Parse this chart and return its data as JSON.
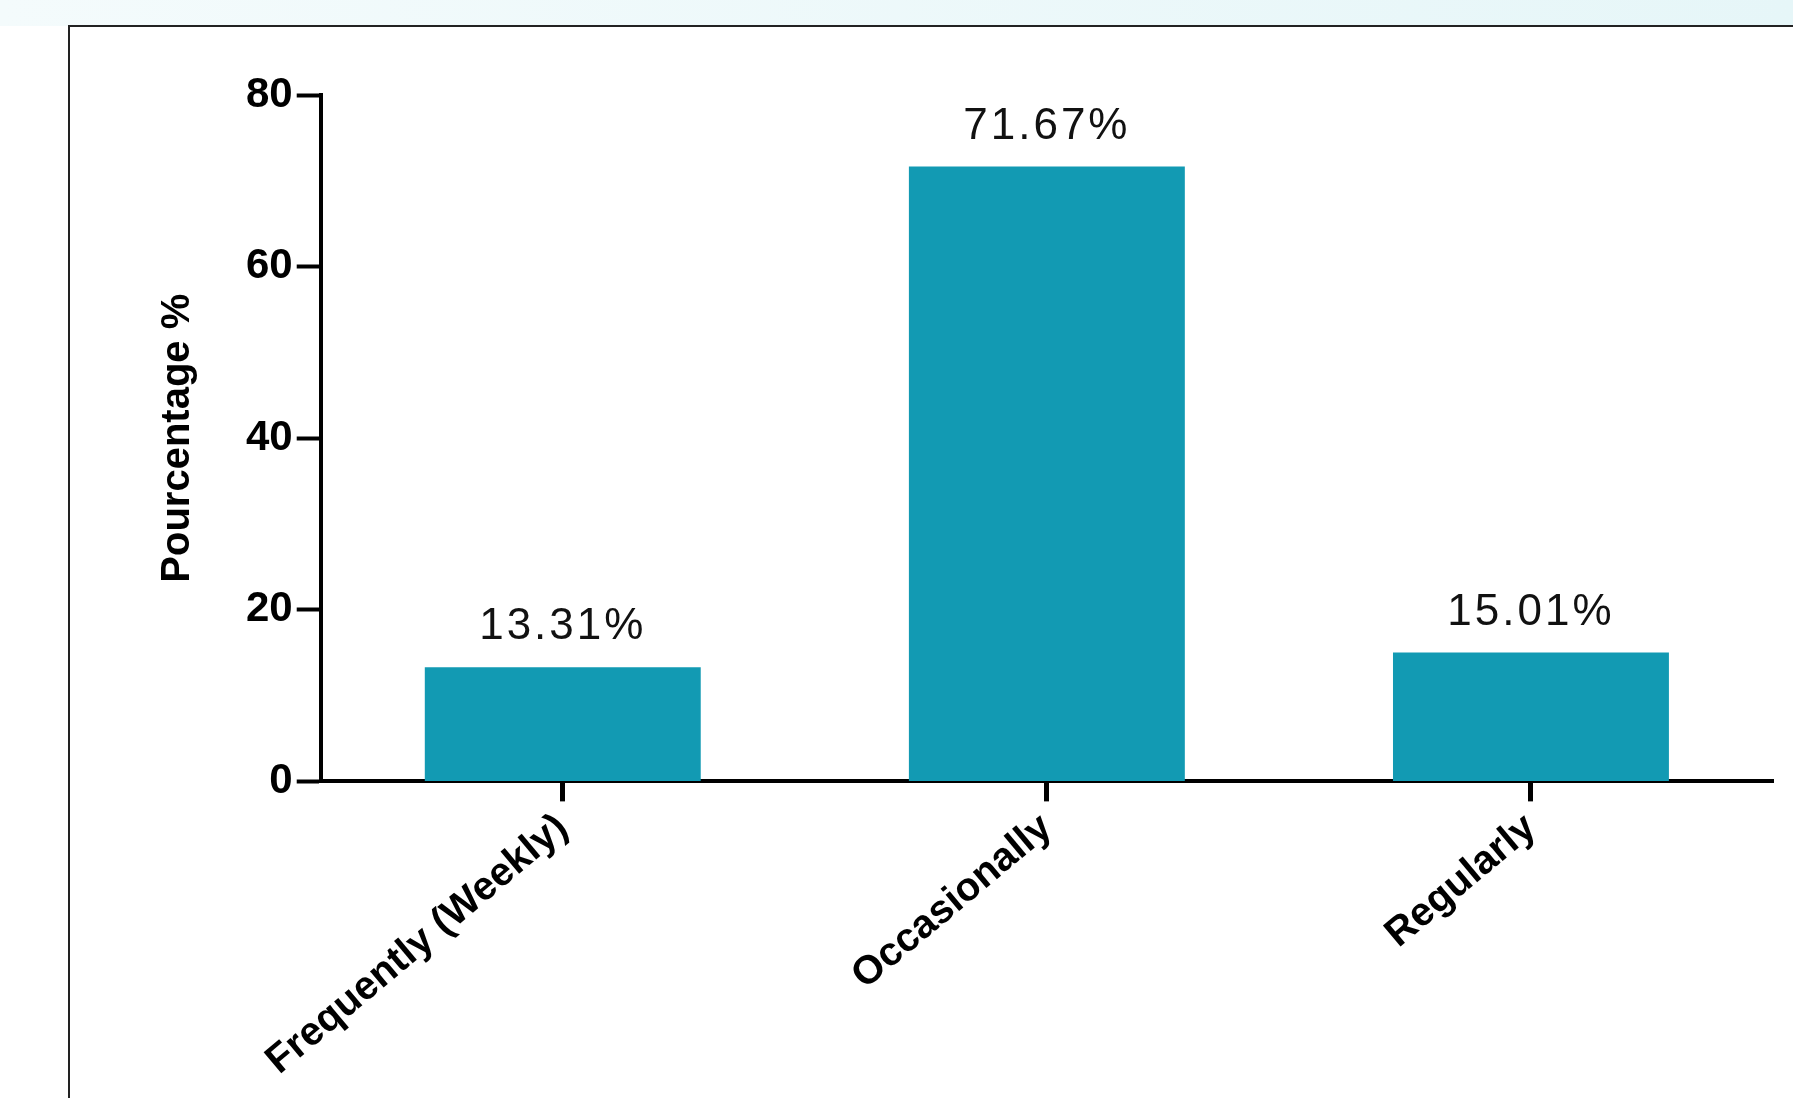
{
  "chart_data": {
    "type": "bar",
    "ylabel": "Pourcentage %",
    "categories": [
      "Frequently (Weekly)",
      "Occasionally",
      "Regularly"
    ],
    "values": [
      13.31,
      71.67,
      15.01
    ],
    "value_labels": [
      "13.31%",
      "71.67%",
      "15.01%"
    ],
    "color": "#129ab3",
    "ylim": [
      0,
      80
    ],
    "yticks": [
      0,
      20,
      40,
      60,
      80
    ],
    "grid": false,
    "legend": false
  }
}
